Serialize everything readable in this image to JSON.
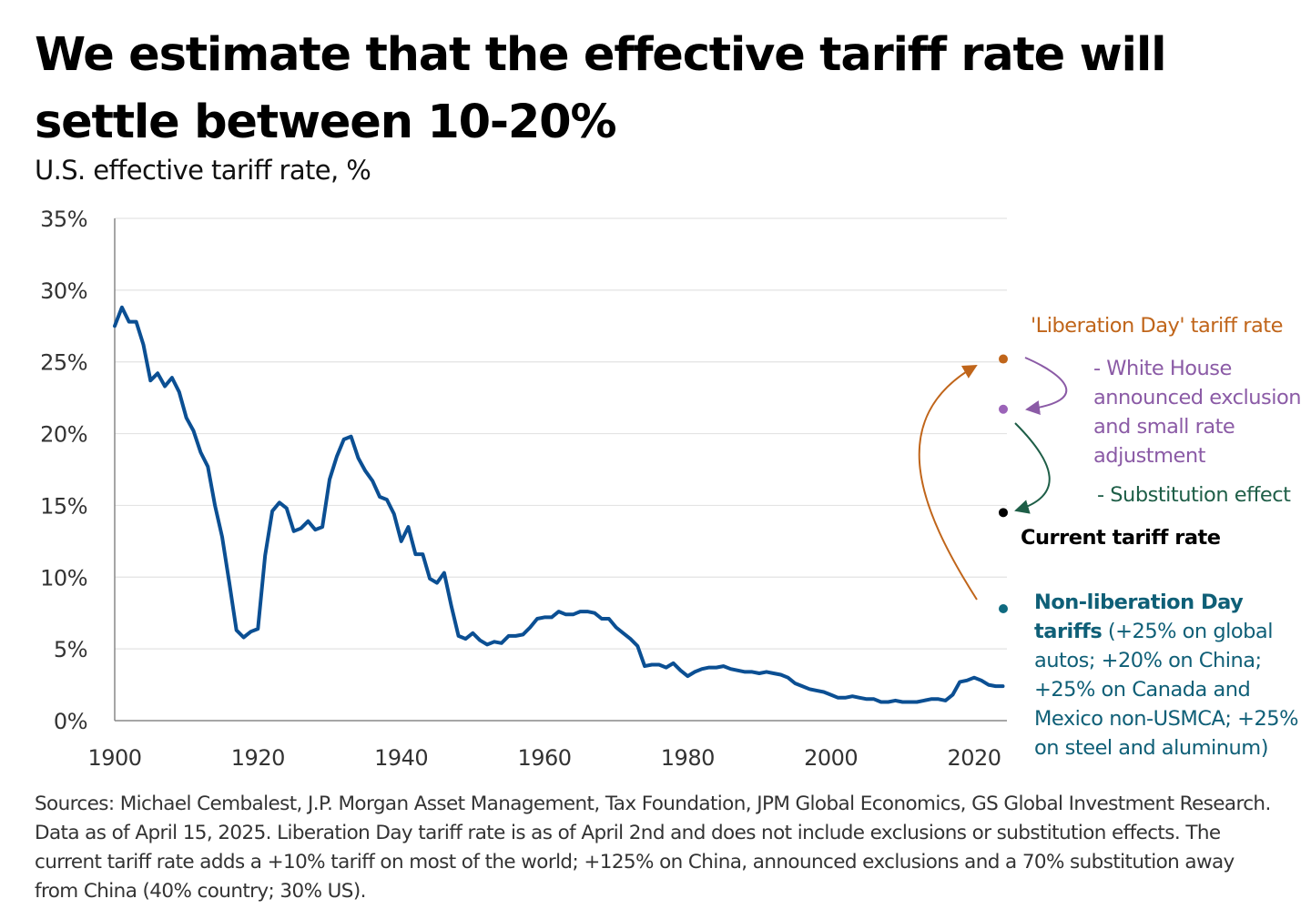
{
  "header": {
    "title": "We estimate that the effective tariff rate will settle between 10-20%",
    "subtitle": "U.S. effective tariff rate, %"
  },
  "colors": {
    "line": "#0B4F93",
    "gridline": "#E3E3E3",
    "axis": "#888888",
    "liberation_day": "#C0651A",
    "white_house": "#8B5BA6",
    "substitution": "#1E5E47",
    "current": "#000000",
    "non_liberation": "#0F6A80"
  },
  "annotations": {
    "liberation_day": "'Liberation Day' tariff rate",
    "white_house": "- White House announced exclusion and small rate adjustment",
    "substitution": "- Substitution effect",
    "current": "Current tariff rate",
    "non_liberation_bold": "Non-liberation Day tariffs",
    "non_liberation_rest": " (+25% on global autos; +20% on China; +25% on Canada and Mexico non-USMCA; +25% on steel and aluminum)"
  },
  "source": "Sources: Michael Cembalest, J.P. Morgan Asset Management, Tax Foundation, JPM Global Economics, GS Global Investment Research. Data as of April 15, 2025. Liberation Day tariff rate is as of April 2nd and does not include exclusions or substitution effects. The current tariff rate adds a +10% tariff on most of the world; +125%  on China, announced exclusions and a 70% substitution away from China (40% country; 30% US).",
  "chart_data": {
    "type": "line",
    "title": "U.S. effective tariff rate, %",
    "xlabel": "",
    "ylabel": "",
    "xlim": [
      1900,
      2025
    ],
    "ylim": [
      0,
      35
    ],
    "grid": true,
    "x_ticks": [
      1900,
      1920,
      1940,
      1960,
      1980,
      2000,
      2020
    ],
    "x_tick_labels": [
      "1900",
      "1920",
      "1940",
      "1960",
      "1980",
      "2000",
      "2020"
    ],
    "y_ticks": [
      0,
      5,
      10,
      15,
      20,
      25,
      30,
      35
    ],
    "y_tick_labels": [
      "0%",
      "5%",
      "10%",
      "15%",
      "20%",
      "25%",
      "30%",
      "35%"
    ],
    "series": [
      {
        "name": "U.S. effective tariff rate",
        "x": [
          1900,
          1901,
          1902,
          1903,
          1904,
          1905,
          1906,
          1907,
          1908,
          1909,
          1910,
          1911,
          1912,
          1913,
          1914,
          1915,
          1916,
          1917,
          1918,
          1919,
          1920,
          1921,
          1922,
          1923,
          1924,
          1925,
          1926,
          1927,
          1928,
          1929,
          1930,
          1931,
          1932,
          1933,
          1934,
          1935,
          1936,
          1937,
          1938,
          1939,
          1940,
          1941,
          1942,
          1943,
          1944,
          1945,
          1946,
          1947,
          1948,
          1949,
          1950,
          1951,
          1952,
          1953,
          1954,
          1955,
          1956,
          1957,
          1958,
          1959,
          1960,
          1961,
          1962,
          1963,
          1964,
          1965,
          1966,
          1967,
          1968,
          1969,
          1970,
          1971,
          1972,
          1973,
          1974,
          1975,
          1976,
          1977,
          1978,
          1979,
          1980,
          1981,
          1982,
          1983,
          1984,
          1985,
          1986,
          1987,
          1988,
          1989,
          1990,
          1991,
          1992,
          1993,
          1994,
          1995,
          1996,
          1997,
          1998,
          1999,
          2000,
          2001,
          2002,
          2003,
          2004,
          2005,
          2006,
          2007,
          2008,
          2009,
          2010,
          2011,
          2012,
          2013,
          2014,
          2015,
          2016,
          2017,
          2018,
          2019,
          2020,
          2021,
          2022,
          2023,
          2024
        ],
        "values": [
          27.5,
          28.8,
          27.8,
          27.8,
          26.2,
          23.7,
          24.2,
          23.3,
          23.9,
          22.9,
          21.1,
          20.2,
          18.7,
          17.7,
          15.0,
          12.8,
          9.6,
          6.3,
          5.8,
          6.2,
          6.4,
          11.5,
          14.6,
          15.2,
          14.8,
          13.2,
          13.4,
          13.9,
          13.3,
          13.5,
          16.8,
          18.4,
          19.6,
          19.8,
          18.3,
          17.4,
          16.7,
          15.6,
          15.4,
          14.4,
          12.5,
          13.5,
          11.6,
          11.6,
          9.9,
          9.6,
          10.3,
          8.0,
          5.9,
          5.7,
          6.1,
          5.6,
          5.3,
          5.5,
          5.4,
          5.9,
          5.9,
          6.0,
          6.5,
          7.1,
          7.2,
          7.2,
          7.6,
          7.4,
          7.4,
          7.6,
          7.6,
          7.5,
          7.1,
          7.1,
          6.5,
          6.1,
          5.7,
          5.2,
          3.8,
          3.9,
          3.9,
          3.7,
          4.0,
          3.5,
          3.1,
          3.4,
          3.6,
          3.7,
          3.7,
          3.8,
          3.6,
          3.5,
          3.4,
          3.4,
          3.3,
          3.4,
          3.3,
          3.2,
          3.0,
          2.6,
          2.4,
          2.2,
          2.1,
          2.0,
          1.8,
          1.6,
          1.6,
          1.7,
          1.6,
          1.5,
          1.5,
          1.3,
          1.3,
          1.4,
          1.3,
          1.3,
          1.3,
          1.4,
          1.5,
          1.5,
          1.4,
          1.8,
          2.7,
          2.8,
          3.0,
          2.8,
          2.5,
          2.4,
          2.4
        ]
      }
    ],
    "points": [
      {
        "name": "Liberation Day tariff rate",
        "x": 2025,
        "value": 25.2,
        "color": "#C0651A"
      },
      {
        "name": "After White House exclusions",
        "x": 2025,
        "value": 21.7,
        "color": "#9B63B8"
      },
      {
        "name": "Current tariff rate",
        "x": 2025,
        "value": 14.5,
        "color": "#000000"
      },
      {
        "name": "Non-liberation Day tariffs",
        "x": 2025,
        "value": 7.8,
        "color": "#0F6A80"
      }
    ]
  }
}
